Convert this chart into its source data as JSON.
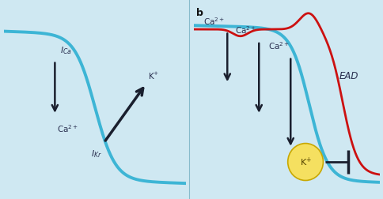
{
  "bg_color": "#cfe8f2",
  "panel_bg_left": "#d6edf7",
  "panel_bg_right": "#d6edf7",
  "curve_color": "#3db5d5",
  "curve_lw": 2.8,
  "red_curve_color": "#cc1111",
  "red_curve_lw": 2.0,
  "arrow_color": "#1a1f2e",
  "text_color": "#2a3050",
  "label_b_color": "#111111",
  "ica_label": "I$_{Ca}$",
  "ca2_label1": "Ca$^{2+}$",
  "k_label": "K$^{+}$",
  "ikr_label": "I$_{Kr}$",
  "ca2_label2a": "Ca$^{2+}$",
  "ca2_label2b": "Ca$^{2+}$",
  "ca2_label2c": "Ca$^{2+}$",
  "ead_label": "EAD",
  "k_label2": "K$^{+}$",
  "circle_color": "#f5e060",
  "circle_edge": "#c8a800",
  "b_label": "b"
}
